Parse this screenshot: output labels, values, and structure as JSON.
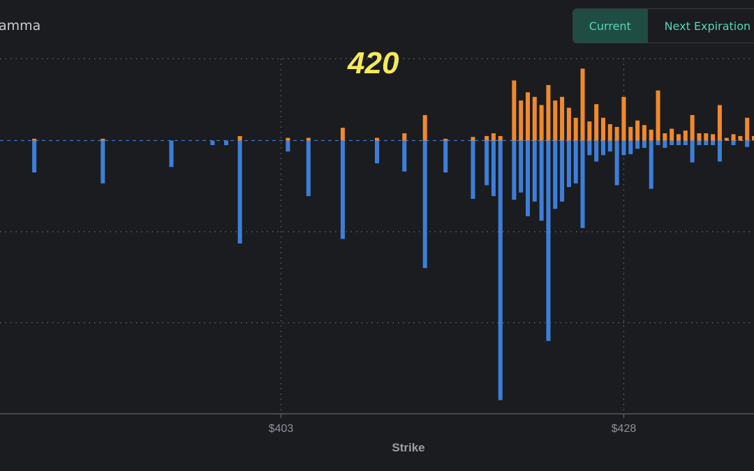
{
  "header": {
    "title": "amma"
  },
  "toggle": {
    "current_label": "Current",
    "next_label": "Next Expiration"
  },
  "annotation": {
    "text": "420"
  },
  "colors": {
    "positive": "#f08a2c",
    "negative": "#3d7fd8",
    "accent": "#55d6b8"
  },
  "chart_data": {
    "type": "bar",
    "xlabel": "Strike",
    "ylabel": "",
    "x_ticks": [
      403,
      428
    ],
    "x_tick_labels": [
      "$403",
      "$428"
    ],
    "xlim": [
      382.5,
      437.5
    ],
    "ylim": [
      -30,
      9
    ],
    "grid": true,
    "series": [
      {
        "name": "",
        "x": [
          385,
          390,
          395,
          400,
          403.5,
          405,
          407.5,
          410,
          412,
          413.5,
          415,
          417,
          418,
          418.5,
          419,
          420,
          420.5,
          421,
          421.5,
          422,
          422.5,
          423,
          423.5,
          424,
          424.5,
          425,
          425.5,
          426,
          426.5,
          427,
          427.5,
          428,
          428.5,
          429,
          429.5,
          430,
          430.5,
          431,
          431.5,
          432,
          432.5,
          433,
          433.5,
          434,
          434.5,
          435,
          435.5,
          436,
          436.5,
          437,
          437.5
        ],
        "values": [
          0.2,
          0.2,
          0,
          0.5,
          0.3,
          0.3,
          1.4,
          0.3,
          0.8,
          2.8,
          0.2,
          0.4,
          0.5,
          0.8,
          0.5,
          6.6,
          4.4,
          5.3,
          4.8,
          3.9,
          6.1,
          4.4,
          4.8,
          3.6,
          2.5,
          7.9,
          2.1,
          4.0,
          2.5,
          1.8,
          1.5,
          4.8,
          1.5,
          2.2,
          1.7,
          1.2,
          5.5,
          0.8,
          1.3,
          0.7,
          1.1,
          2.8,
          0.8,
          0.8,
          0.7,
          3.9,
          0.3,
          0.7,
          0.5,
          2.5,
          0.5
        ]
      },
      {
        "name": "",
        "x": [
          385,
          390,
          395,
          398,
          399,
          400,
          403.5,
          405,
          407.5,
          410,
          412,
          413.5,
          415,
          417,
          418,
          418.5,
          419,
          420,
          420.5,
          421,
          421.5,
          422,
          422.5,
          423,
          423.5,
          424,
          424.5,
          425,
          425.5,
          426,
          426.5,
          427,
          427.5,
          428,
          428.5,
          429,
          429.5,
          430,
          430.5,
          431,
          431.5,
          432,
          432.5,
          433,
          433.5,
          434,
          434.5,
          435,
          436,
          437
        ],
        "values": [
          -3.5,
          -4.7,
          -2.9,
          -0.5,
          -0.5,
          -11.3,
          -1.2,
          -6.1,
          -10.8,
          -2.5,
          -3.4,
          -14.0,
          -3.5,
          -6.4,
          -4.9,
          -6.1,
          -28.5,
          -6.5,
          -5.7,
          -8.3,
          -6.7,
          -8.8,
          -22.0,
          -7.5,
          -6.7,
          -5.1,
          -4.7,
          -9.6,
          -1.6,
          -2.3,
          -1.6,
          -1.2,
          -4.9,
          -1.6,
          -1.5,
          -0.9,
          -0.8,
          -5.3,
          -0.5,
          -0.8,
          -0.5,
          -0.5,
          -0.5,
          -2.4,
          -0.5,
          -0.5,
          -0.5,
          -2.3,
          -0.5,
          -0.7
        ]
      }
    ]
  }
}
